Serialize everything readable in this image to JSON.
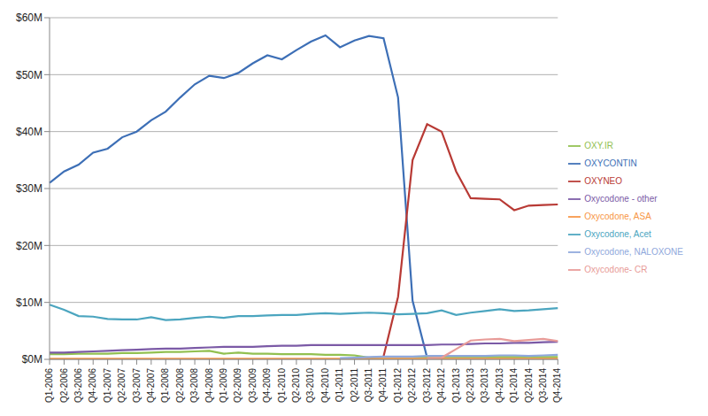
{
  "chart_data": {
    "type": "line",
    "categories": [
      "Q1-2006",
      "Q2-2006",
      "Q3-2006",
      "Q4-2006",
      "Q1-2007",
      "Q2-2007",
      "Q3-2007",
      "Q4-2007",
      "Q1-2008",
      "Q2-2008",
      "Q3-2008",
      "Q4-2008",
      "Q1-2009",
      "Q2-2009",
      "Q3-2009",
      "Q4-2009",
      "Q1-2010",
      "Q2-2010",
      "Q3-2010",
      "Q4-2010",
      "Q1-2011",
      "Q2-2011",
      "Q3-2011",
      "Q4-2011",
      "Q1-2012",
      "Q2-2012",
      "Q3-2012",
      "Q4-2012",
      "Q1-2013",
      "Q2-2013",
      "Q3-2013",
      "Q4-2013",
      "Q1-2014",
      "Q2-2014",
      "Q3-2014",
      "Q4-2014"
    ],
    "series": [
      {
        "name": "OXYCONTIN",
        "color": "#3d6fb6",
        "values": [
          31,
          33,
          34.2,
          36.3,
          37,
          39,
          40,
          42,
          43.5,
          46,
          48.3,
          49.8,
          49.4,
          50.3,
          52,
          53.4,
          52.7,
          54.3,
          55.8,
          56.9,
          54.8,
          56,
          56.8,
          56.4,
          46,
          10.3,
          0.3,
          null,
          null,
          null,
          null,
          null,
          null,
          null,
          null,
          null
        ]
      },
      {
        "name": "OXYNEO",
        "color": "#b83a35",
        "values": [
          null,
          null,
          null,
          null,
          null,
          null,
          null,
          null,
          null,
          null,
          null,
          null,
          null,
          null,
          null,
          null,
          null,
          null,
          null,
          null,
          null,
          null,
          null,
          0.5,
          11,
          35,
          41.3,
          40,
          33,
          28.3,
          28.2,
          28.1,
          26.2,
          27,
          27.1,
          27.2
        ]
      },
      {
        "name": "OXY.IR",
        "color": "#92c050",
        "values": [
          0.9,
          0.9,
          1.0,
          1.0,
          1.0,
          1.1,
          1.1,
          1.2,
          1.3,
          1.3,
          1.4,
          1.5,
          1.0,
          1.2,
          1.0,
          1.0,
          0.9,
          0.9,
          0.9,
          0.8,
          0.8,
          0.7,
          0.3,
          0.4,
          0.4,
          0.4,
          0.4,
          0.4,
          0.4,
          0.4,
          0.4,
          0.4,
          0.4,
          0.4,
          0.4,
          0.4
        ]
      },
      {
        "name": "Oxycodone - other",
        "color": "#7b5aa6",
        "values": [
          1.2,
          1.2,
          1.3,
          1.4,
          1.5,
          1.6,
          1.7,
          1.8,
          1.9,
          1.9,
          2.0,
          2.1,
          2.2,
          2.2,
          2.2,
          2.3,
          2.4,
          2.4,
          2.5,
          2.5,
          2.5,
          2.5,
          2.5,
          2.5,
          2.5,
          2.5,
          2.5,
          2.6,
          2.6,
          2.7,
          2.8,
          2.8,
          2.9,
          2.9,
          3.0,
          3.1
        ]
      },
      {
        "name": "Oxycodone, Acet",
        "color": "#4ba5bf",
        "values": [
          9.6,
          8.7,
          7.6,
          7.5,
          7.1,
          7.0,
          7.0,
          7.4,
          6.9,
          7.0,
          7.3,
          7.5,
          7.3,
          7.6,
          7.6,
          7.7,
          7.8,
          7.8,
          8.0,
          8.1,
          8.0,
          8.1,
          8.2,
          8.1,
          7.9,
          8.0,
          8.1,
          8.6,
          7.8,
          8.2,
          8.5,
          8.8,
          8.5,
          8.6,
          8.8,
          9.0
        ]
      },
      {
        "name": "Oxycodone, ASA",
        "color": "#f79646",
        "values": [
          0.1,
          0.1,
          0.1,
          0.1,
          0.1,
          0.1,
          0.1,
          0.1,
          0.1,
          0.1,
          0.1,
          0.1,
          0.1,
          0.1,
          0.1,
          0.1,
          0.1,
          0.1,
          0.1,
          0.1,
          0.1,
          0.1,
          0.1,
          0.1,
          0.1,
          0.1,
          0.1,
          0.1,
          0.1,
          0.1,
          0.1,
          0.1,
          0.1,
          0.1,
          0.1,
          0.1
        ]
      },
      {
        "name": "Oxycodone, NALOXONE",
        "color": "#8fa8dc",
        "values": [
          null,
          null,
          null,
          null,
          null,
          null,
          null,
          null,
          null,
          null,
          null,
          null,
          null,
          null,
          null,
          null,
          null,
          null,
          null,
          null,
          0.2,
          0.3,
          0.4,
          0.5,
          0.5,
          0.5,
          0.6,
          0.6,
          0.6,
          0.6,
          0.6,
          0.7,
          0.7,
          0.6,
          0.7,
          0.8
        ]
      },
      {
        "name": "Oxycodone- CR",
        "color": "#e89b98",
        "values": [
          null,
          null,
          null,
          null,
          null,
          null,
          null,
          null,
          null,
          null,
          null,
          null,
          null,
          null,
          null,
          null,
          null,
          null,
          null,
          null,
          null,
          null,
          null,
          null,
          null,
          null,
          0.2,
          0.3,
          1.8,
          3.3,
          3.5,
          3.6,
          3.2,
          3.4,
          3.6,
          3.2
        ]
      }
    ],
    "ylim": [
      0,
      60
    ],
    "yticks": [
      {
        "value": 0,
        "label": "$0M"
      },
      {
        "value": 10,
        "label": "$10M"
      },
      {
        "value": 20,
        "label": "$20M"
      },
      {
        "value": 30,
        "label": "$30M"
      },
      {
        "value": 40,
        "label": "$40M"
      },
      {
        "value": 50,
        "label": "$50M"
      },
      {
        "value": 60,
        "label": "$60M"
      }
    ],
    "grid": true,
    "legend": "right"
  }
}
